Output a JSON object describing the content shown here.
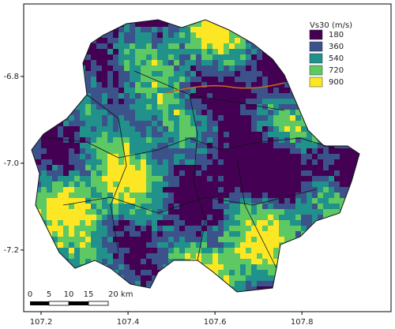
{
  "map": {
    "xlim": [
      107.16,
      108.005
    ],
    "ylim": [
      -7.342,
      -6.633
    ],
    "xticks": [
      107.2,
      107.4,
      107.6,
      107.8
    ],
    "yticks": [
      -6.8,
      {
        "value": -7,
        "label": "-7.0"
      },
      -7.2
    ],
    "legend": {
      "title": "Vs30 (m/s)",
      "items": [
        {
          "label": "180",
          "color": "#440154"
        },
        {
          "label": "360",
          "color": "#3b528b"
        },
        {
          "label": "540",
          "color": "#21918c"
        },
        {
          "label": "720",
          "color": "#5ec962"
        },
        {
          "label": "900",
          "color": "#fde725"
        }
      ]
    },
    "scale_bar": {
      "labels": [
        "0",
        "5",
        "10",
        "15",
        "20 km"
      ]
    }
  }
}
